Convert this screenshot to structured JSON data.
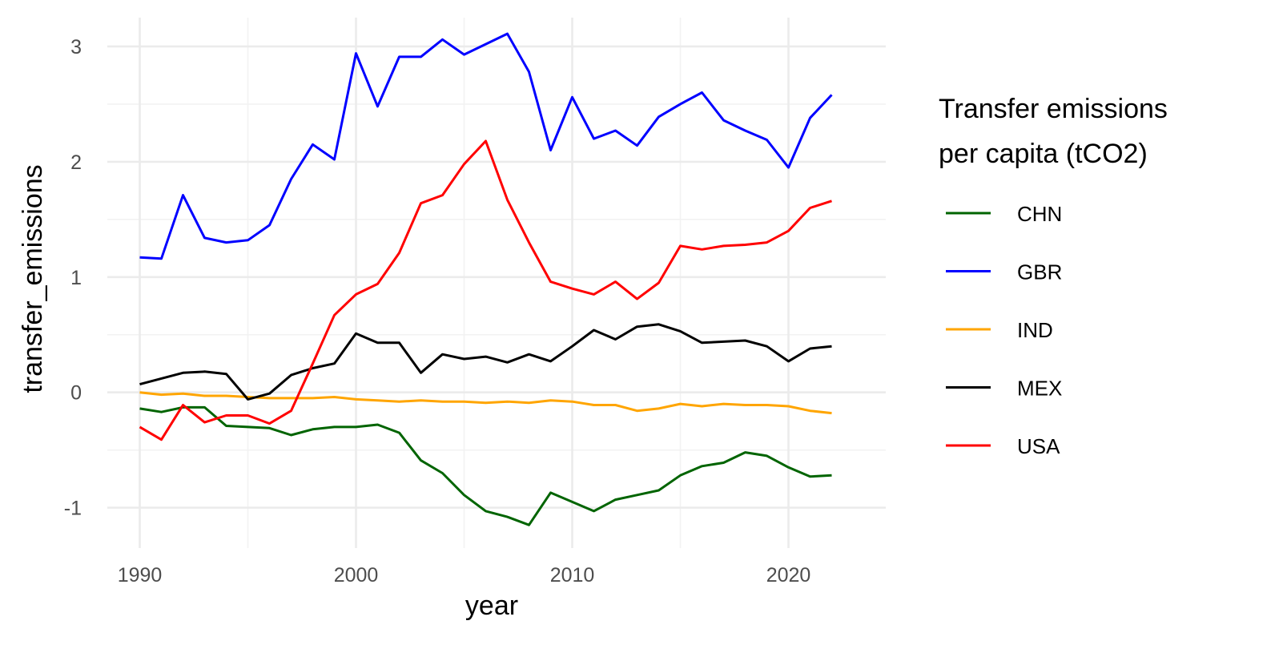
{
  "chart_data": {
    "type": "line",
    "xlabel": "year",
    "ylabel": "transfer_emissions",
    "xlim": [
      1988.5,
      2024.5
    ],
    "ylim": [
      -1.35,
      3.25
    ],
    "x_ticks": [
      1990,
      2000,
      2010,
      2020
    ],
    "x_minor_ticks": [
      1995,
      2005,
      2015
    ],
    "y_ticks": [
      -1,
      0,
      1,
      2,
      3
    ],
    "y_tick_labels": [
      "-1",
      "0",
      "1",
      "2",
      "3"
    ],
    "y_minor_ticks": [
      -0.5,
      0.5,
      1.5,
      2.5
    ],
    "grid": true,
    "legend": {
      "title_lines": [
        "Transfer emissions",
        "per capita (tCO2)"
      ],
      "position": "right"
    },
    "x": [
      1990,
      1991,
      1992,
      1993,
      1994,
      1995,
      1996,
      1997,
      1998,
      1999,
      2000,
      2001,
      2002,
      2003,
      2004,
      2005,
      2006,
      2007,
      2008,
      2009,
      2010,
      2011,
      2012,
      2013,
      2014,
      2015,
      2016,
      2017,
      2018,
      2019,
      2020,
      2021,
      2022
    ],
    "series": [
      {
        "name": "CHN",
        "color": "#006400",
        "values": [
          -0.14,
          -0.17,
          -0.13,
          -0.13,
          -0.29,
          -0.3,
          -0.31,
          -0.37,
          -0.32,
          -0.3,
          -0.3,
          -0.28,
          -0.35,
          -0.59,
          -0.7,
          -0.89,
          -1.03,
          -1.08,
          -1.15,
          -0.87,
          -0.95,
          -1.03,
          -0.93,
          -0.89,
          -0.85,
          -0.72,
          -0.64,
          -0.61,
          -0.52,
          -0.55,
          -0.65,
          -0.73,
          -0.72
        ]
      },
      {
        "name": "GBR",
        "color": "#0000ff",
        "values": [
          1.17,
          1.16,
          1.71,
          1.34,
          1.3,
          1.32,
          1.45,
          1.85,
          2.15,
          2.02,
          2.94,
          2.48,
          2.91,
          2.91,
          3.06,
          2.93,
          3.02,
          3.11,
          2.78,
          2.1,
          2.56,
          2.2,
          2.27,
          2.14,
          2.39,
          2.5,
          2.6,
          2.36,
          2.27,
          2.19,
          1.95,
          2.38,
          2.58
        ]
      },
      {
        "name": "IND",
        "color": "#ffa500",
        "values": [
          0.0,
          -0.02,
          -0.01,
          -0.03,
          -0.03,
          -0.04,
          -0.05,
          -0.05,
          -0.05,
          -0.04,
          -0.06,
          -0.07,
          -0.08,
          -0.07,
          -0.08,
          -0.08,
          -0.09,
          -0.08,
          -0.09,
          -0.07,
          -0.08,
          -0.11,
          -0.11,
          -0.16,
          -0.14,
          -0.1,
          -0.12,
          -0.1,
          -0.11,
          -0.11,
          -0.12,
          -0.16,
          -0.18
        ]
      },
      {
        "name": "MEX",
        "color": "#000000",
        "values": [
          0.07,
          0.12,
          0.17,
          0.18,
          0.16,
          -0.06,
          -0.01,
          0.15,
          0.21,
          0.25,
          0.51,
          0.43,
          0.43,
          0.17,
          0.33,
          0.29,
          0.31,
          0.26,
          0.33,
          0.27,
          0.4,
          0.54,
          0.46,
          0.57,
          0.59,
          0.53,
          0.43,
          0.44,
          0.45,
          0.4,
          0.27,
          0.38,
          0.4
        ]
      },
      {
        "name": "USA",
        "color": "#ff0000",
        "values": [
          -0.3,
          -0.41,
          -0.11,
          -0.26,
          -0.2,
          -0.2,
          -0.27,
          -0.16,
          0.25,
          0.67,
          0.85,
          0.94,
          1.21,
          1.64,
          1.71,
          1.98,
          2.18,
          1.67,
          1.3,
          0.96,
          0.9,
          0.85,
          0.96,
          0.81,
          0.95,
          1.27,
          1.24,
          1.27,
          1.28,
          1.3,
          1.4,
          1.6,
          1.66
        ]
      }
    ]
  }
}
